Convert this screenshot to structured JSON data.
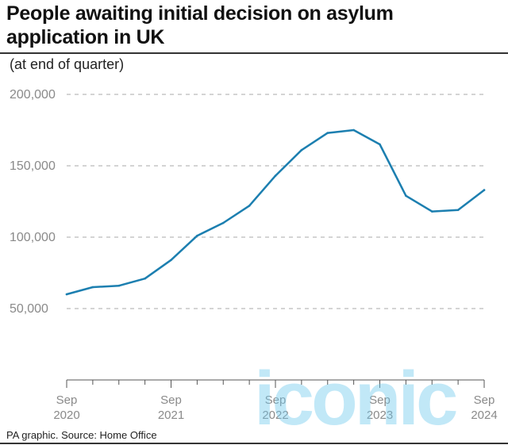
{
  "header": {
    "title": "People awaiting initial decision on asylum application in UK",
    "subtitle": "(at end of quarter)"
  },
  "footer": {
    "source": "PA graphic.  Source: Home Office"
  },
  "watermark": {
    "text": "iconic"
  },
  "colors": {
    "line": "#1c7fb0",
    "grid": "#a8a8a8",
    "axis": "#555555"
  },
  "chart_data": {
    "type": "line",
    "title": "People awaiting initial decision on asylum application in UK",
    "subtitle": "(at end of quarter)",
    "xlabel": "",
    "ylabel": "",
    "x": [
      "Sep 2020",
      "Dec 2020",
      "Mar 2021",
      "Jun 2021",
      "Sep 2021",
      "Dec 2021",
      "Mar 2022",
      "Jun 2022",
      "Sep 2022",
      "Dec 2022",
      "Mar 2023",
      "Jun 2023",
      "Sep 2023",
      "Dec 2023",
      "Mar 2024",
      "Jun 2024",
      "Sep 2024"
    ],
    "series": [
      {
        "values": [
          60000,
          65000,
          66000,
          71000,
          84000,
          101000,
          110000,
          122000,
          143000,
          161000,
          173000,
          175000,
          165000,
          129000,
          118000,
          119000,
          133000
        ]
      }
    ],
    "ylim": [
      0,
      200000
    ],
    "yticks": [
      {
        "value": 200000,
        "label": "200,000"
      },
      {
        "value": 150000,
        "label": "150,000"
      },
      {
        "value": 100000,
        "label": "100,000"
      },
      {
        "value": 50000,
        "label": "50,000"
      }
    ],
    "xticks": [
      {
        "index": 0,
        "month": "Sep",
        "year": "2020"
      },
      {
        "index": 4,
        "month": "Sep",
        "year": "2021"
      },
      {
        "index": 8,
        "month": "Sep",
        "year": "2022"
      },
      {
        "index": 12,
        "month": "Sep",
        "year": "2023"
      },
      {
        "index": 16,
        "month": "Sep",
        "year": "2024"
      }
    ],
    "grid": "horizontal dashed",
    "legend": "none"
  }
}
